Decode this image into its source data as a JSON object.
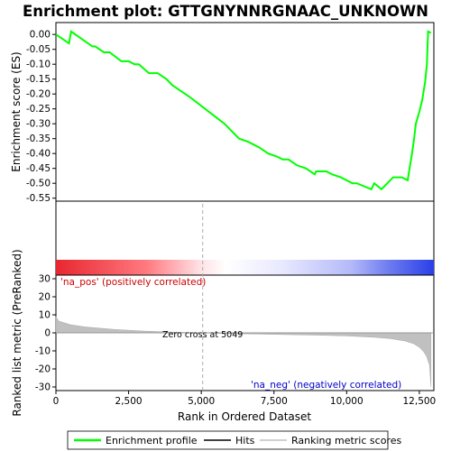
{
  "chart_data": {
    "type": "line",
    "title": "Enrichment plot: GTTGNYNNRGNAAC_UNKNOWN",
    "xlabel": "Rank in Ordered Dataset",
    "ylabel_top": "Enrichment score (ES)",
    "ylabel_bottom": "Ranked list metric (PreRanked)",
    "x_range": [
      0,
      13000
    ],
    "x_ticks": [
      0,
      2500,
      5000,
      7500,
      10000,
      12500
    ],
    "es_range": [
      -0.56,
      0.04
    ],
    "es_ticks": [
      0.0,
      -0.05,
      -0.1,
      -0.15,
      -0.2,
      -0.25,
      -0.3,
      -0.35,
      -0.4,
      -0.45,
      -0.5,
      -0.55
    ],
    "es_tick_labels": [
      "0.00",
      "-0.05",
      "-0.10",
      "-0.15",
      "-0.20",
      "-0.25",
      "-0.30",
      "-0.35",
      "-0.40",
      "-0.45",
      "-0.50",
      "-0.55"
    ],
    "metric_range": [
      -32,
      32
    ],
    "metric_ticks": [
      30,
      20,
      10,
      0,
      -10,
      -20,
      -30
    ],
    "grid": false,
    "legend_position": "bottom",
    "series": [
      {
        "name": "Enrichment profile",
        "color": "#00ff00",
        "x": [
          0,
          450,
          520,
          1250,
          1350,
          1650,
          1850,
          2250,
          2500,
          2700,
          2850,
          3200,
          3500,
          3800,
          4000,
          4300,
          4600,
          5000,
          5400,
          5800,
          6300,
          6600,
          6800,
          7000,
          7300,
          7600,
          7800,
          8000,
          8300,
          8600,
          8900,
          8950,
          9300,
          9500,
          9800,
          10000,
          10200,
          10350,
          10600,
          10850,
          10950,
          11200,
          11400,
          11600,
          11900,
          12100,
          12180,
          12250,
          12320,
          12380,
          12500,
          12600,
          12700,
          12760,
          12800,
          12900
        ],
        "y": [
          0.0,
          -0.03,
          0.01,
          -0.04,
          -0.04,
          -0.06,
          -0.06,
          -0.09,
          -0.09,
          -0.1,
          -0.1,
          -0.13,
          -0.13,
          -0.15,
          -0.17,
          -0.19,
          -0.21,
          -0.24,
          -0.27,
          -0.3,
          -0.35,
          -0.36,
          -0.37,
          -0.38,
          -0.4,
          -0.41,
          -0.42,
          -0.42,
          -0.44,
          -0.45,
          -0.47,
          -0.46,
          -0.46,
          -0.47,
          -0.48,
          -0.49,
          -0.5,
          -0.5,
          -0.51,
          -0.52,
          -0.5,
          -0.52,
          -0.5,
          -0.48,
          -0.48,
          -0.49,
          -0.44,
          -0.4,
          -0.35,
          -0.3,
          -0.26,
          -0.22,
          -0.16,
          -0.1,
          0.01,
          0.005
        ]
      },
      {
        "name": "Hits",
        "color": "#000000",
        "hits": [
          410,
          470,
          1320,
          1650,
          1720,
          1830,
          2250,
          2450,
          2520,
          2680,
          2700,
          3150,
          3200,
          3270,
          3400,
          3550,
          3700,
          3830,
          4320,
          4360,
          5050,
          5180,
          5360,
          5500,
          5560,
          5690,
          6330,
          6400,
          6450,
          6560,
          6680,
          6800,
          6850,
          6920,
          7150,
          7220,
          7520,
          7580,
          7700,
          7760,
          7850,
          8100,
          8150,
          8320,
          8460,
          8500,
          8780,
          8900,
          9000,
          9120,
          9200,
          9400,
          9560,
          9700,
          9800,
          9850,
          10300,
          10380,
          10700,
          10750,
          10900,
          10980,
          11050,
          11200,
          11320,
          11420,
          11560,
          11600,
          11700,
          11900,
          12050,
          12150,
          12200,
          12250,
          12290,
          12340,
          12380,
          12420,
          12500,
          12580,
          12700,
          12780
        ]
      },
      {
        "name": "Ranking metric scores",
        "color": "#c0c0c0",
        "x": [
          0,
          100,
          500,
          1000,
          2000,
          3000,
          4000,
          5049,
          6000,
          7000,
          8000,
          9000,
          10000,
          11000,
          11500,
          12000,
          12300,
          12500,
          12650,
          12750,
          12850,
          12900
        ],
        "y": [
          9,
          6.5,
          4.5,
          3.3,
          1.9,
          1.0,
          0.4,
          0.0,
          -0.4,
          -0.7,
          -1.0,
          -1.3,
          -1.7,
          -2.5,
          -3.2,
          -4.5,
          -6.0,
          -8.0,
          -10.5,
          -13.0,
          -18.0,
          -30.0
        ]
      }
    ],
    "zero_cross_rank": 5049,
    "annotations": {
      "pos_label": "'na_pos' (positively correlated)",
      "neg_label": "'na_neg' (negatively correlated)",
      "zero_cross_label": "Zero cross at 5049"
    },
    "colors": {
      "pos_band": "#e8262f",
      "neg_band": "#3b4ef0",
      "mid_band": "#ffffff"
    }
  }
}
